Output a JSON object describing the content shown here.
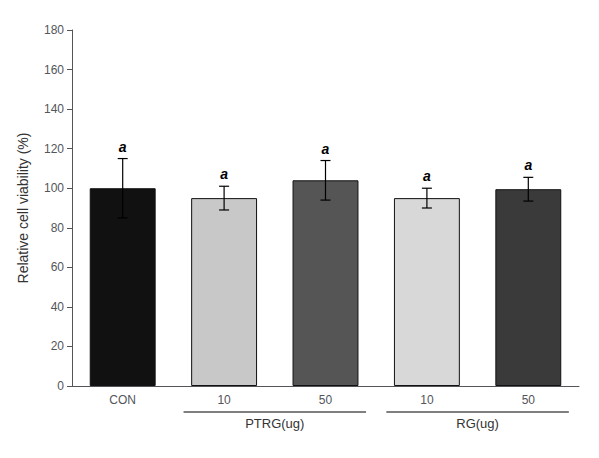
{
  "chart_data": {
    "type": "bar",
    "ylabel": "Relative cell viability (%)",
    "categories": [
      "CON",
      "10",
      "50",
      "10",
      "50"
    ],
    "groups": [
      null,
      "PTRG(ug)",
      "PTRG(ug)",
      "RG(ug)",
      "RG(ug)"
    ],
    "values": [
      100,
      95,
      104,
      95,
      99.5
    ],
    "errors": [
      15,
      6,
      10,
      5,
      6
    ],
    "annotations": [
      "a",
      "a",
      "a",
      "a",
      "a"
    ],
    "colors": [
      "#111111",
      "#c8c8c8",
      "#555555",
      "#d8d8d8",
      "#3a3a3a"
    ],
    "ylim": [
      0,
      180
    ],
    "yticks": [
      0,
      20,
      40,
      60,
      80,
      100,
      120,
      140,
      160,
      180
    ],
    "grid": false
  }
}
